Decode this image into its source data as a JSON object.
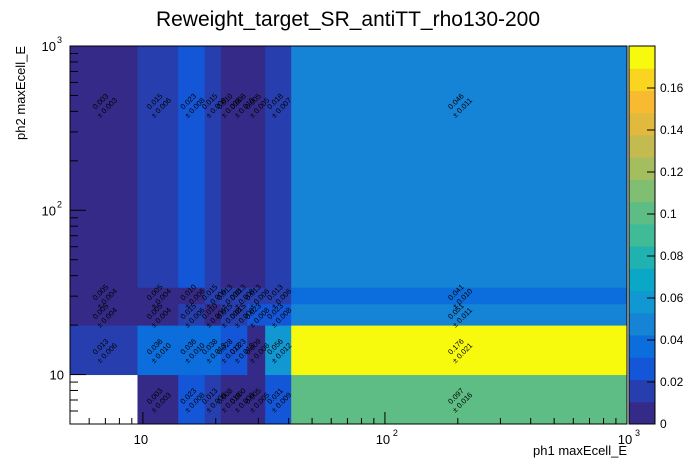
{
  "chart_data": {
    "type": "heatmap",
    "title": "Reweight_target_SR_antiTT_rho130-200",
    "xlabel": "ph1 maxEcell_E",
    "ylabel": "ph2 maxEcell_E",
    "x_scale": "log",
    "y_scale": "log",
    "xlim": [
      5,
      1000
    ],
    "ylim": [
      5,
      1000
    ],
    "x_bin_edges": [
      5,
      9.5,
      14,
      18,
      21,
      24,
      27,
      32,
      41,
      1000
    ],
    "y_bin_edges": [
      5,
      10,
      20,
      27,
      34,
      1000
    ],
    "x_tick_labels": [
      {
        "value": 10,
        "label": "10"
      },
      {
        "value": 100,
        "label": "10"
      },
      {
        "value": 1000,
        "label": "10"
      }
    ],
    "x_tick_exponents": [
      "",
      "2",
      "3"
    ],
    "y_tick_labels": [
      {
        "value": 10,
        "label": "10"
      },
      {
        "value": 100,
        "label": "10"
      },
      {
        "value": 1000,
        "label": "10"
      }
    ],
    "y_tick_exponents": [
      "",
      "2",
      "3"
    ],
    "zlim": [
      0,
      0.18
    ],
    "colorbar_ticks": [
      "0",
      "0.02",
      "0.04",
      "0.06",
      "0.08",
      "0.1",
      "0.12",
      "0.14",
      "0.16"
    ],
    "colorbar_tick_values": [
      0,
      0.02,
      0.04,
      0.06,
      0.08,
      0.1,
      0.12,
      0.14,
      0.16
    ],
    "cells": [
      {
        "xi": 1,
        "yi": 0,
        "value": 0.003,
        "error": 0.003
      },
      {
        "xi": 2,
        "yi": 0,
        "value": 0.023,
        "error": 0.008
      },
      {
        "xi": 3,
        "yi": 0,
        "value": 0.013,
        "error": 0.008
      },
      {
        "xi": 4,
        "yi": 0,
        "value": 0.008,
        "error": 0.01
      },
      {
        "xi": 5,
        "yi": 0,
        "value": 0.0,
        "error": 0.0
      },
      {
        "xi": 6,
        "yi": 0,
        "value": 0.005,
        "error": 0.005
      },
      {
        "xi": 7,
        "yi": 0,
        "value": 0.031,
        "error": 0.009
      },
      {
        "xi": 8,
        "yi": 0,
        "value": 0.097,
        "error": 0.016
      },
      {
        "xi": 0,
        "yi": 1,
        "value": 0.013,
        "error": 0.006
      },
      {
        "xi": 1,
        "yi": 1,
        "value": 0.036,
        "error": 0.01
      },
      {
        "xi": 2,
        "yi": 1,
        "value": 0.036,
        "error": 0.01
      },
      {
        "xi": 3,
        "yi": 1,
        "value": 0.038,
        "error": 0.013
      },
      {
        "xi": 4,
        "yi": 1,
        "value": 0.028,
        "error": 0.013
      },
      {
        "xi": 5,
        "yi": 1,
        "value": 0.023,
        "error": 0.012
      },
      {
        "xi": 6,
        "yi": 1,
        "value": 0.009,
        "error": 0.006
      },
      {
        "xi": 7,
        "yi": 1,
        "value": 0.056,
        "error": 0.012
      },
      {
        "xi": 8,
        "yi": 1,
        "value": 0.176,
        "error": 0.021
      },
      {
        "xi": 0,
        "yi": 2,
        "value": 0.005,
        "error": 0.004
      },
      {
        "xi": 1,
        "yi": 2,
        "value": 0.005,
        "error": 0.004
      },
      {
        "xi": 2,
        "yi": 2,
        "value": 0.015,
        "error": 0.006
      },
      {
        "xi": 3,
        "yi": 2,
        "value": 0.01,
        "error": 0.006
      },
      {
        "xi": 4,
        "yi": 2,
        "value": 0.015,
        "error": 0.008
      },
      {
        "xi": 5,
        "yi": 2,
        "value": 0.015,
        "error": 0.008
      },
      {
        "xi": 6,
        "yi": 2,
        "value": 0.023,
        "error": 0.008
      },
      {
        "xi": 7,
        "yi": 2,
        "value": 0.023,
        "error": 0.008
      },
      {
        "xi": 8,
        "yi": 2,
        "value": 0.051,
        "error": 0.011
      },
      {
        "xi": 0,
        "yi": 3,
        "value": 0.005,
        "error": 0.004
      },
      {
        "xi": 1,
        "yi": 3,
        "value": 0.005,
        "error": 0.004
      },
      {
        "xi": 2,
        "yi": 3,
        "value": 0.01,
        "error": 0.006
      },
      {
        "xi": 3,
        "yi": 3,
        "value": 0.015,
        "error": 0.006
      },
      {
        "xi": 4,
        "yi": 3,
        "value": 0.013,
        "error": 0.008
      },
      {
        "xi": 5,
        "yi": 3,
        "value": 0.013,
        "error": 0.008
      },
      {
        "xi": 6,
        "yi": 3,
        "value": 0.013,
        "error": 0.006
      },
      {
        "xi": 7,
        "yi": 3,
        "value": 0.013,
        "error": 0.006
      },
      {
        "xi": 8,
        "yi": 3,
        "value": 0.041,
        "error": 0.01
      },
      {
        "xi": 0,
        "yi": 4,
        "value": 0.003,
        "error": 0.003
      },
      {
        "xi": 1,
        "yi": 4,
        "value": 0.015,
        "error": 0.006
      },
      {
        "xi": 2,
        "yi": 4,
        "value": 0.023,
        "error": 0.008
      },
      {
        "xi": 3,
        "yi": 4,
        "value": 0.015,
        "error": 0.008
      },
      {
        "xi": 4,
        "yi": 4,
        "value": 0.01,
        "error": 0.008
      },
      {
        "xi": 5,
        "yi": 4,
        "value": 0.008,
        "error": 0.01
      },
      {
        "xi": 6,
        "yi": 4,
        "value": 0.005,
        "error": 0.005
      },
      {
        "xi": 7,
        "yi": 4,
        "value": 0.018,
        "error": 0.007
      },
      {
        "xi": 8,
        "yi": 4,
        "value": 0.046,
        "error": 0.011
      }
    ]
  }
}
